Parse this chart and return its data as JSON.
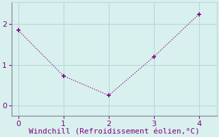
{
  "x": [
    0,
    1,
    2,
    3,
    4
  ],
  "y": [
    1.85,
    0.73,
    0.25,
    1.2,
    2.25
  ],
  "line_color": "#800080",
  "marker": "+",
  "marker_size": 5,
  "marker_linewidth": 1.2,
  "background_color": "#d8f0ee",
  "grid_color": "#b8d8d8",
  "axis_color": "#808090",
  "spine_color": "#800080",
  "xlabel": "Windchill (Refroidissement éolien,°C)",
  "xlabel_color": "#800080",
  "xlabel_fontsize": 8,
  "tick_color": "#800080",
  "tick_fontsize": 8,
  "xlim": [
    -0.15,
    4.4
  ],
  "ylim": [
    -0.25,
    2.55
  ],
  "xticks": [
    0,
    1,
    2,
    3,
    4
  ],
  "yticks": [
    0,
    1,
    2
  ],
  "line_dotted_style": "dotted",
  "linewidth": 0.9
}
